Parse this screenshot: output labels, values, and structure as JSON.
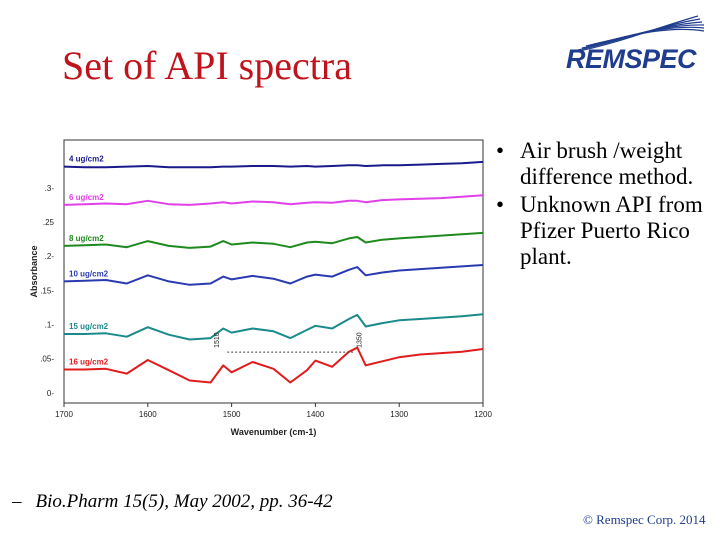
{
  "slide": {
    "title": "Set of API spectra",
    "logo_text": "REMSPEC",
    "bullets": [
      "Air brush /weight difference method.",
      "Unknown API from Pfizer Puerto Rico plant."
    ],
    "bullet_symbol": "•",
    "citation_dash": "–",
    "citation": "Bio.Pharm 15(5), May 2002, pp. 36-42",
    "copyright": "© Remspec Corp. 2014"
  },
  "colors": {
    "title": "#c0141c",
    "logo": "#1f3d8c",
    "series": [
      "#1a1a8c",
      "#e040e8",
      "#1e8a1e",
      "#2a3ab0",
      "#1a8a8a",
      "#e01c1c"
    ]
  },
  "chart_data": {
    "type": "line",
    "xlabel": "Wavenumber (cm-1)",
    "ylabel": "Absorbance",
    "xlim": [
      1700,
      1200
    ],
    "ylim": [
      -0.015,
      0.37
    ],
    "x_ticks": [
      1700,
      1600,
      1500,
      1400,
      1300,
      1200
    ],
    "y_ticks": [
      {
        "value": 0,
        "label": "0-"
      },
      {
        "value": 0.05,
        "label": ".05-"
      },
      {
        "value": 0.1,
        "label": ".1-"
      },
      {
        "value": 0.15,
        "label": ".15-"
      },
      {
        "value": 0.2,
        "label": ".2-"
      },
      {
        "value": 0.25,
        "label": ".25"
      },
      {
        "value": 0.3,
        "label": ".3-"
      }
    ],
    "grid": false,
    "x": [
      1700,
      1675,
      1650,
      1625,
      1600,
      1575,
      1550,
      1525,
      1510,
      1500,
      1475,
      1450,
      1430,
      1410,
      1400,
      1380,
      1360,
      1350,
      1340,
      1320,
      1300,
      1275,
      1250,
      1225,
      1200
    ],
    "series": [
      {
        "name": "4 ug/cm2",
        "values": [
          0.331,
          0.33,
          0.33,
          0.331,
          0.332,
          0.33,
          0.33,
          0.33,
          0.331,
          0.331,
          0.332,
          0.332,
          0.331,
          0.332,
          0.331,
          0.332,
          0.333,
          0.333,
          0.332,
          0.333,
          0.333,
          0.334,
          0.335,
          0.336,
          0.338
        ]
      },
      {
        "name": "6 ug/cm2",
        "values": [
          0.275,
          0.276,
          0.277,
          0.276,
          0.281,
          0.276,
          0.275,
          0.277,
          0.279,
          0.277,
          0.28,
          0.279,
          0.276,
          0.278,
          0.279,
          0.278,
          0.281,
          0.281,
          0.279,
          0.282,
          0.283,
          0.284,
          0.285,
          0.287,
          0.289
        ]
      },
      {
        "name": "8 ug/cm2",
        "values": [
          0.215,
          0.216,
          0.217,
          0.213,
          0.222,
          0.215,
          0.212,
          0.214,
          0.222,
          0.217,
          0.22,
          0.218,
          0.213,
          0.22,
          0.221,
          0.219,
          0.226,
          0.228,
          0.22,
          0.224,
          0.226,
          0.228,
          0.23,
          0.232,
          0.234
        ]
      },
      {
        "name": "10 ug/cm2",
        "values": [
          0.163,
          0.164,
          0.165,
          0.16,
          0.172,
          0.163,
          0.158,
          0.16,
          0.17,
          0.166,
          0.171,
          0.167,
          0.16,
          0.17,
          0.173,
          0.17,
          0.18,
          0.184,
          0.172,
          0.176,
          0.179,
          0.181,
          0.183,
          0.185,
          0.187
        ]
      },
      {
        "name": "15 ug/cm2",
        "values": [
          0.086,
          0.086,
          0.087,
          0.082,
          0.096,
          0.085,
          0.078,
          0.08,
          0.094,
          0.088,
          0.094,
          0.09,
          0.08,
          0.092,
          0.098,
          0.094,
          0.108,
          0.114,
          0.097,
          0.102,
          0.106,
          0.108,
          0.11,
          0.112,
          0.115
        ]
      },
      {
        "name": "16 ug/cm2",
        "values": [
          0.034,
          0.034,
          0.035,
          0.028,
          0.048,
          0.033,
          0.018,
          0.015,
          0.04,
          0.03,
          0.045,
          0.035,
          0.015,
          0.033,
          0.047,
          0.038,
          0.06,
          0.066,
          0.04,
          0.046,
          0.052,
          0.056,
          0.058,
          0.06,
          0.064
        ]
      }
    ],
    "annotations": [
      {
        "text": "1510",
        "x": 1510
      },
      {
        "text": "1350",
        "x": 1350
      }
    ]
  }
}
